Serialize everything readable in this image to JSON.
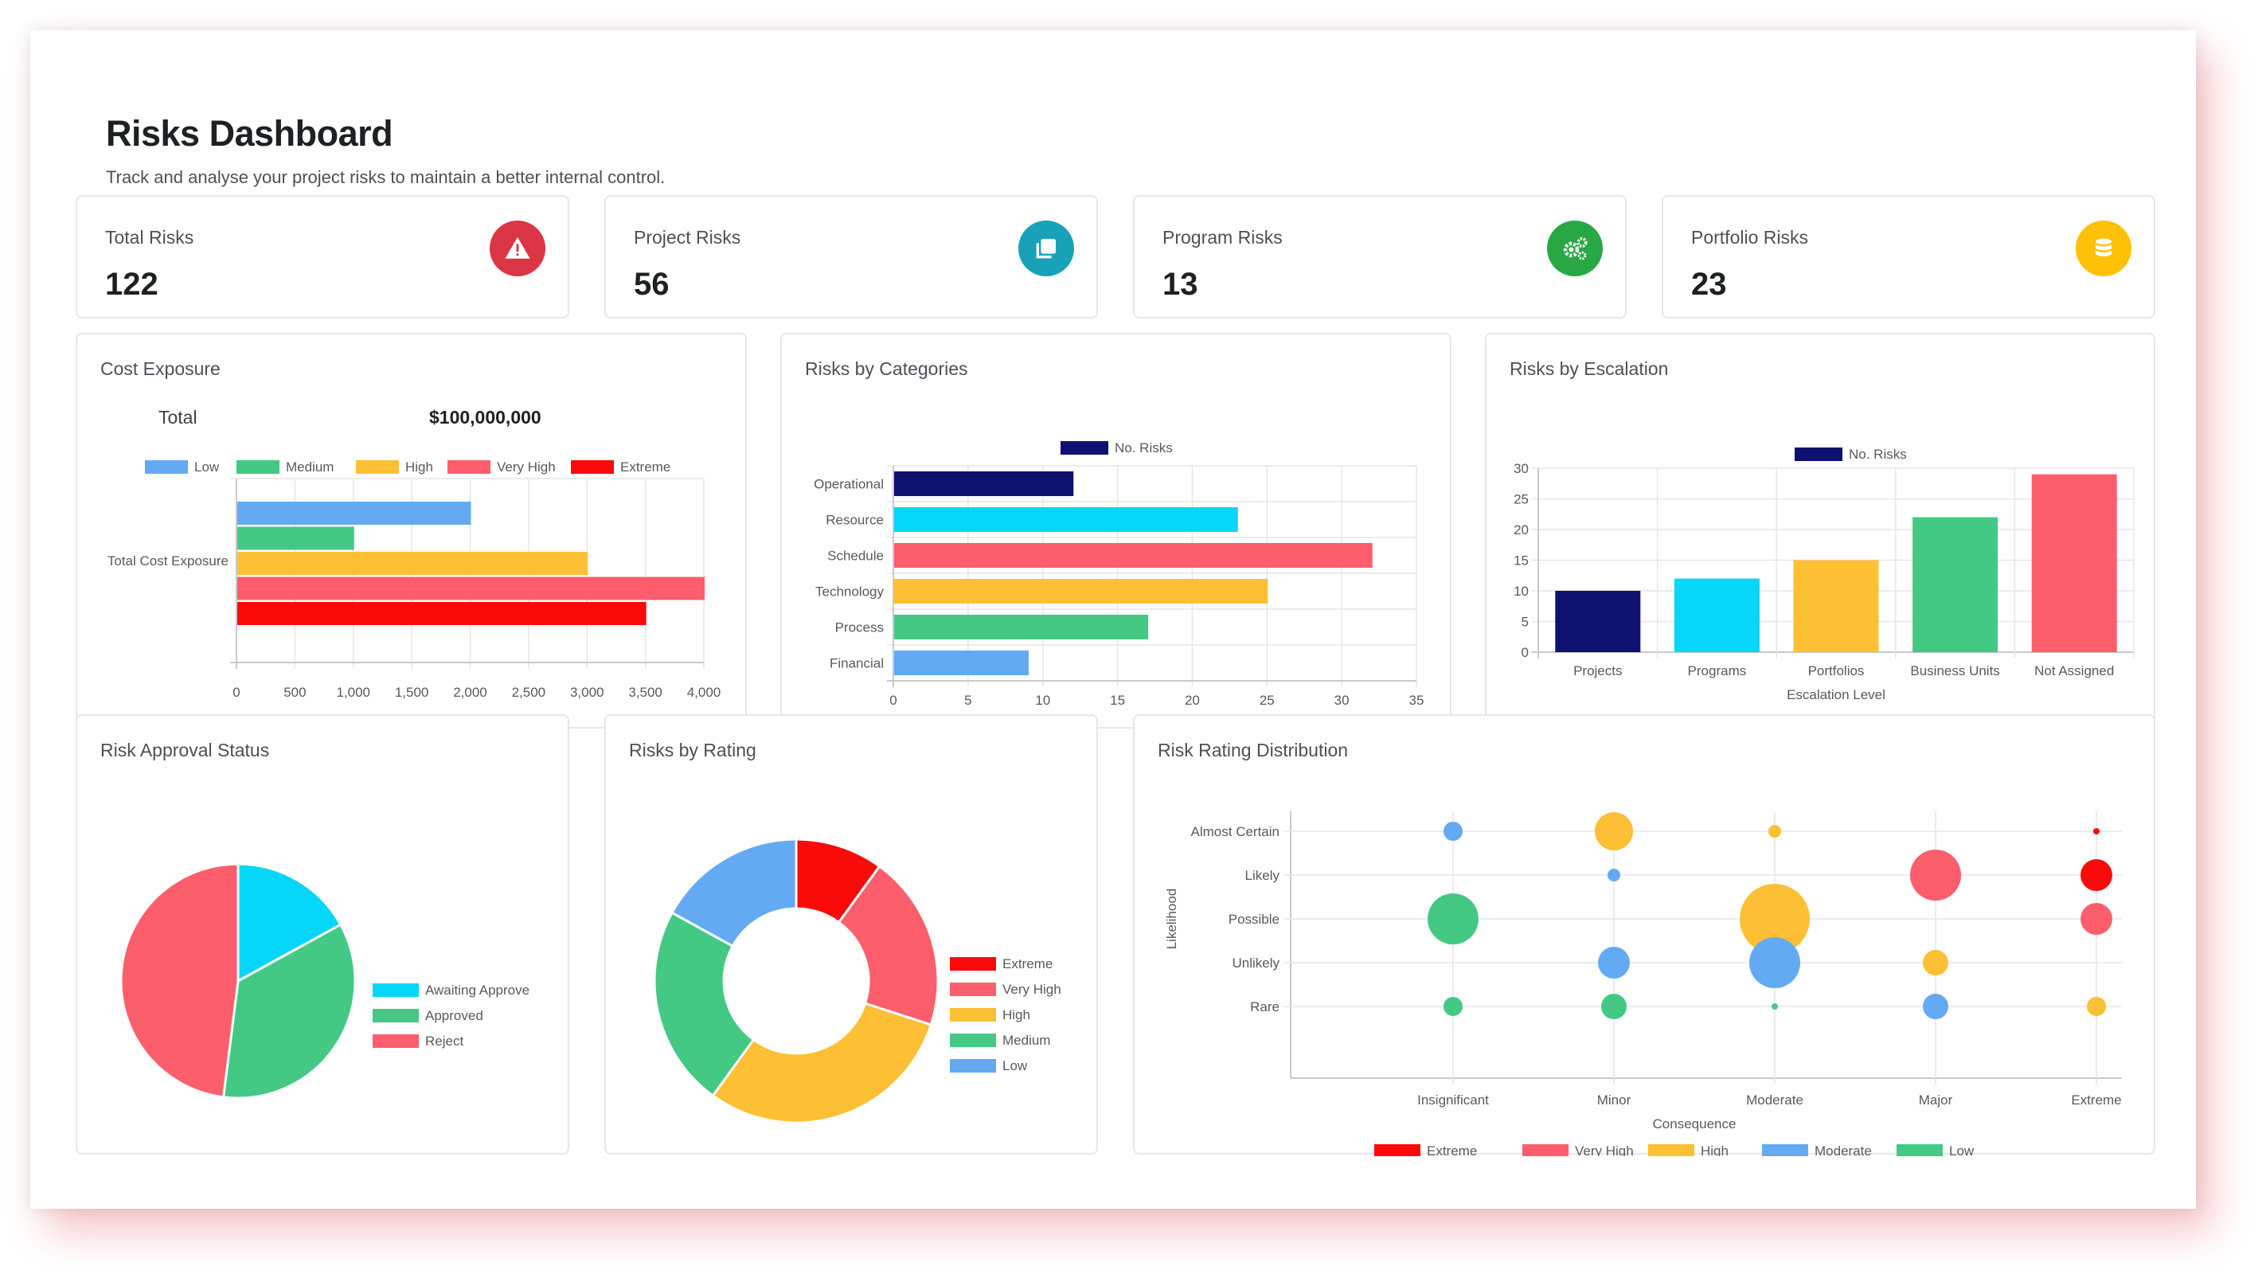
{
  "header": {
    "title": "Risks Dashboard",
    "subtitle": "Track and analyse your project risks to maintain a better internal control."
  },
  "stats": [
    {
      "label": "Total Risks",
      "value": "122",
      "icon": "warning-icon",
      "color": "#dc3545"
    },
    {
      "label": "Project Risks",
      "value": "56",
      "icon": "copy-icon",
      "color": "#17a2b8"
    },
    {
      "label": "Program Risks",
      "value": "13",
      "icon": "gears-icon",
      "color": "#28a745"
    },
    {
      "label": "Portfolio Risks",
      "value": "23",
      "icon": "database-icon",
      "color": "#ffc107"
    }
  ],
  "colors": {
    "low": "#63aaf3",
    "medium": "#44c985",
    "high": "#fdbf33",
    "very_high": "#fd5e6c",
    "extreme": "#fb0a0a",
    "navy": "#0e1170",
    "cyan": "#06d6f8"
  },
  "cost_exposure": {
    "title": "Cost Exposure",
    "total_label": "Total",
    "total_value": "$100,000,000",
    "chart_data": {
      "type": "bar",
      "orientation": "horizontal",
      "categories": [
        "Total Cost Exposure"
      ],
      "series": [
        {
          "name": "Low",
          "values": [
            2000
          ],
          "color": "#63aaf3"
        },
        {
          "name": "Medium",
          "values": [
            1000
          ],
          "color": "#44c985"
        },
        {
          "name": "High",
          "values": [
            3000
          ],
          "color": "#fdbf33"
        },
        {
          "name": "Very High",
          "values": [
            4000
          ],
          "color": "#fd5e6c"
        },
        {
          "name": "Extreme",
          "values": [
            3500
          ],
          "color": "#fb0a0a"
        }
      ],
      "xlim": [
        0,
        4000
      ],
      "xticks": [
        "0",
        "500",
        "1,000",
        "1,500",
        "2,000",
        "2,500",
        "3,000",
        "3,500",
        "4,000"
      ],
      "legend": "top"
    }
  },
  "risks_by_categories": {
    "title": "Risks by Categories",
    "chart_data": {
      "type": "bar",
      "orientation": "horizontal",
      "legend": [
        "No. Risks"
      ],
      "categories": [
        "Operational",
        "Resource",
        "Schedule",
        "Technology",
        "Process",
        "Financial"
      ],
      "values": [
        12,
        23,
        32,
        25,
        17,
        9
      ],
      "colors": [
        "#0e1170",
        "#06d6f8",
        "#fd5e6c",
        "#fdbf33",
        "#44c985",
        "#63aaf3"
      ],
      "xlim": [
        0,
        35
      ],
      "xticks": [
        "0",
        "5",
        "10",
        "15",
        "20",
        "25",
        "30",
        "35"
      ]
    }
  },
  "risks_by_escalation": {
    "title": "Risks by Escalation",
    "chart_data": {
      "type": "bar",
      "legend": [
        "No. Risks"
      ],
      "categories": [
        "Projects",
        "Programs",
        "Portfolios",
        "Business Units",
        "Not Assigned"
      ],
      "values": [
        10,
        12,
        15,
        22,
        29
      ],
      "colors": [
        "#0e1170",
        "#06d6f8",
        "#fdbf33",
        "#44c985",
        "#fd5e6c"
      ],
      "ylim": [
        0,
        30
      ],
      "yticks": [
        "0",
        "5",
        "10",
        "15",
        "20",
        "25",
        "30"
      ],
      "xlabel": "Escalation Level"
    }
  },
  "risk_approval_status": {
    "title": "Risk Approval Status",
    "chart_data": {
      "type": "pie",
      "labels": [
        "Awaiting Approve",
        "Approved",
        "Reject"
      ],
      "values": [
        17,
        35,
        48
      ],
      "colors": [
        "#06d6f8",
        "#44c985",
        "#fd5e6c"
      ]
    }
  },
  "risks_by_rating": {
    "title": "Risks by Rating",
    "chart_data": {
      "type": "doughnut",
      "labels": [
        "Extreme",
        "Very High",
        "High",
        "Medium",
        "Low"
      ],
      "values": [
        10,
        20,
        30,
        23,
        17
      ],
      "colors": [
        "#fb0a0a",
        "#fd5e6c",
        "#fdbf33",
        "#44c985",
        "#63aaf3"
      ]
    }
  },
  "risk_rating_distribution": {
    "title": "Risk Rating Distribution",
    "chart_data": {
      "type": "bubble",
      "x_categories": [
        "Insignificant",
        "Minor",
        "Moderate",
        "Major",
        "Extreme"
      ],
      "y_categories": [
        "Rare",
        "Unlikely",
        "Possible",
        "Likely",
        "Almost Certain"
      ],
      "xlabel": "Consequence",
      "ylabel": "Likelihood",
      "legend": [
        {
          "name": "Extreme",
          "color": "#fb0a0a"
        },
        {
          "name": "Very High",
          "color": "#fd5e6c"
        },
        {
          "name": "High",
          "color": "#fdbf33"
        },
        {
          "name": "Moderate",
          "color": "#63aaf3"
        },
        {
          "name": "Low",
          "color": "#44c985"
        }
      ],
      "points": [
        {
          "x": 0,
          "y": 4,
          "r": 3,
          "level": "Moderate"
        },
        {
          "x": 1,
          "y": 4,
          "r": 6,
          "level": "High"
        },
        {
          "x": 2,
          "y": 4,
          "r": 2,
          "level": "High"
        },
        {
          "x": 4,
          "y": 4,
          "r": 1,
          "level": "Extreme"
        },
        {
          "x": 1,
          "y": 3,
          "r": 2,
          "level": "Moderate"
        },
        {
          "x": 3,
          "y": 3,
          "r": 8,
          "level": "Very High"
        },
        {
          "x": 4,
          "y": 3,
          "r": 5,
          "level": "Extreme"
        },
        {
          "x": 0,
          "y": 2,
          "r": 8,
          "level": "Low"
        },
        {
          "x": 2,
          "y": 2,
          "r": 11,
          "level": "High"
        },
        {
          "x": 4,
          "y": 2,
          "r": 5,
          "level": "Very High"
        },
        {
          "x": 1,
          "y": 1,
          "r": 5,
          "level": "Moderate"
        },
        {
          "x": 2,
          "y": 1,
          "r": 8,
          "level": "Moderate"
        },
        {
          "x": 3,
          "y": 1,
          "r": 4,
          "level": "High"
        },
        {
          "x": 0,
          "y": 0,
          "r": 3,
          "level": "Low"
        },
        {
          "x": 1,
          "y": 0,
          "r": 4,
          "level": "Low"
        },
        {
          "x": 2,
          "y": 0,
          "r": 1,
          "level": "Low"
        },
        {
          "x": 3,
          "y": 0,
          "r": 4,
          "level": "Moderate"
        },
        {
          "x": 4,
          "y": 0,
          "r": 3,
          "level": "High"
        }
      ]
    }
  }
}
